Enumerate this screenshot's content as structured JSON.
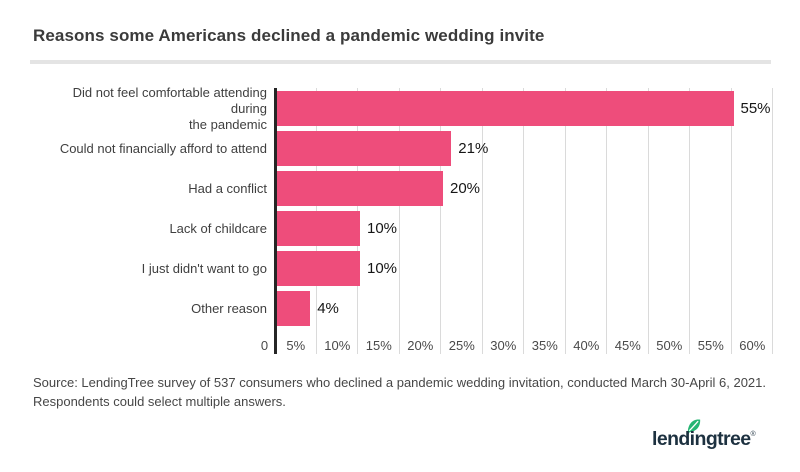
{
  "header": {
    "title": "Reasons some Americans declined a pandemic wedding invite"
  },
  "chart_data": {
    "type": "bar",
    "orientation": "horizontal",
    "title": "Reasons some Americans declined a pandemic wedding invite",
    "categories": [
      "Did not feel comfortable attending during the pandemic",
      "Could not financially afford to attend",
      "Had a conflict",
      "Lack of childcare",
      "I just didn't want to go",
      "Other reason"
    ],
    "category_lines": [
      [
        "Did not feel comfortable attending during",
        "the pandemic"
      ],
      [
        "Could not financially afford to attend"
      ],
      [
        "Had a conflict"
      ],
      [
        "Lack of childcare"
      ],
      [
        "I just didn't want to go"
      ],
      [
        "Other reason"
      ]
    ],
    "values": [
      55,
      21,
      20,
      10,
      10,
      4
    ],
    "value_labels": [
      "55%",
      "21%",
      "20%",
      "10%",
      "10%",
      "4%"
    ],
    "xlim": [
      0,
      60
    ],
    "xtick_step": 5,
    "xticks": [
      "0",
      "5%",
      "10%",
      "15%",
      "20%",
      "25%",
      "30%",
      "35%",
      "40%",
      "45%",
      "50%",
      "55%",
      "60%"
    ],
    "grid": true,
    "legend": "none",
    "bar_color": "#EE4D7B"
  },
  "footer": {
    "source_line1": "Source: LendingTree survey of 537 consumers who declined a pandemic wedding invitation, conducted March 30-April 6, 2021.",
    "source_line2": "Respondents could select multiple answers.",
    "logo_text": "lendingtree",
    "logo_reg": "®"
  },
  "colors": {
    "bar": "#EE4D7B",
    "axis_line": "#262626",
    "gridline": "#DADADA",
    "divider": "#E4E4E4",
    "title_text": "#3B3B3B",
    "label_text": "#3F3F3F",
    "value_text": "#161616",
    "source_text": "#474747",
    "logo_navy": "#1D3140",
    "leaf_green": "#26B573"
  }
}
